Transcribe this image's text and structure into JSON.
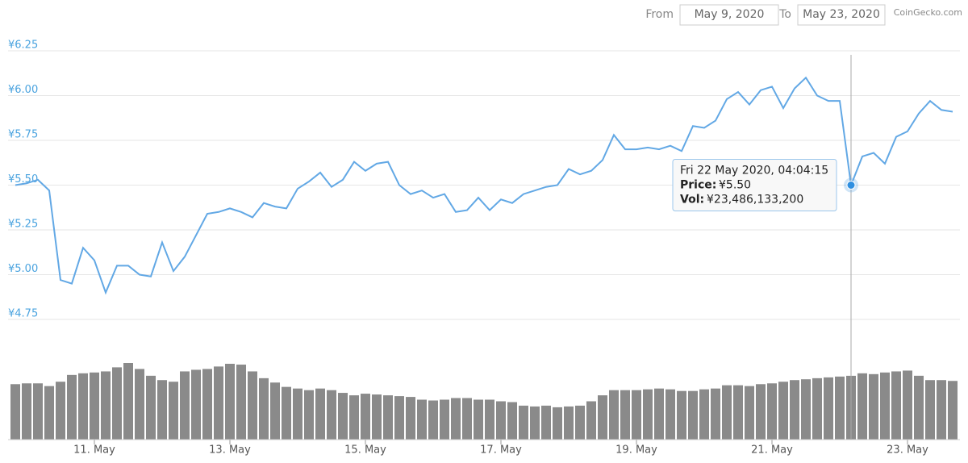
{
  "header": {
    "from_label": "From",
    "from": "May 9, 2020",
    "to_label": "To",
    "to": "May 23, 2020",
    "credit": "CoinGecko.com"
  },
  "chart_data": [
    {
      "type": "line",
      "color": "#62a8e5",
      "grid": true,
      "ylim": [
        4.75,
        6.25
      ],
      "yticks": [
        {
          "value": 4.75,
          "label": "¥4.75"
        },
        {
          "value": 5.0,
          "label": "¥5.00"
        },
        {
          "value": 5.25,
          "label": "¥5.25"
        },
        {
          "value": 5.5,
          "label": "¥5.50"
        },
        {
          "value": 5.75,
          "label": "¥5.75"
        },
        {
          "value": 6.0,
          "label": "¥6.00"
        },
        {
          "value": 6.25,
          "label": "¥6.25"
        }
      ],
      "values": [
        5.5,
        5.51,
        5.53,
        5.47,
        4.97,
        4.95,
        5.15,
        5.08,
        4.9,
        5.05,
        5.05,
        5.0,
        4.99,
        5.18,
        5.02,
        5.1,
        5.22,
        5.34,
        5.35,
        5.37,
        5.35,
        5.32,
        5.4,
        5.38,
        5.37,
        5.48,
        5.52,
        5.57,
        5.49,
        5.53,
        5.63,
        5.58,
        5.62,
        5.63,
        5.5,
        5.45,
        5.47,
        5.43,
        5.45,
        5.35,
        5.36,
        5.43,
        5.36,
        5.42,
        5.4,
        5.45,
        5.47,
        5.49,
        5.5,
        5.59,
        5.56,
        5.58,
        5.64,
        5.78,
        5.7,
        5.7,
        5.71,
        5.7,
        5.72,
        5.69,
        5.83,
        5.82,
        5.86,
        5.98,
        6.02,
        5.95,
        6.03,
        6.05,
        5.93,
        6.04,
        6.1,
        6.0,
        5.97,
        5.97,
        5.5,
        5.66,
        5.68,
        5.62,
        5.77,
        5.8,
        5.9,
        5.97,
        5.92,
        5.91
      ],
      "tooltip": {
        "date": "Fri 22 May 2020, 04:04:15",
        "price_label": "Price:",
        "price": 5.5,
        "price_text": "¥5.50",
        "vol_label": "Vol:",
        "volume": 23486133200,
        "volume_text": "¥23,486,133,200"
      }
    },
    {
      "type": "bar",
      "color": "#8a8a8a",
      "categories": [
        null,
        null,
        null,
        null,
        null,
        null,
        null,
        "11. May",
        null,
        null,
        null,
        null,
        null,
        null,
        null,
        null,
        null,
        null,
        null,
        "13. May",
        null,
        null,
        null,
        null,
        null,
        null,
        null,
        null,
        null,
        null,
        null,
        "15. May",
        null,
        null,
        null,
        null,
        null,
        null,
        null,
        null,
        null,
        null,
        null,
        "17. May",
        null,
        null,
        null,
        null,
        null,
        null,
        null,
        null,
        null,
        null,
        null,
        "19. May",
        null,
        null,
        null,
        null,
        null,
        null,
        null,
        null,
        null,
        null,
        null,
        "21. May",
        null,
        null,
        null,
        null,
        null,
        null,
        null,
        null,
        null,
        null,
        null,
        "23. May",
        null,
        null,
        null,
        null
      ],
      "values": [
        20400000000,
        20700000000,
        20700000000,
        19700000000,
        21300000000,
        23800000000,
        24400000000,
        24700000000,
        25100000000,
        26600000000,
        28200000000,
        26000000000,
        23500000000,
        21900000000,
        21300000000,
        25100000000,
        25700000000,
        26000000000,
        26900000000,
        27900000000,
        27600000000,
        25100000000,
        22600000000,
        21000000000,
        19400000000,
        18800000000,
        18200000000,
        18800000000,
        18200000000,
        17200000000,
        16300000000,
        16900000000,
        16600000000,
        16300000000,
        16000000000,
        15700000000,
        14700000000,
        14400000000,
        14700000000,
        15300000000,
        15300000000,
        14700000000,
        14700000000,
        14100000000,
        13800000000,
        12500000000,
        12200000000,
        12500000000,
        11900000000,
        12200000000,
        12500000000,
        14100000000,
        16300000000,
        18200000000,
        18200000000,
        18200000000,
        18500000000,
        18800000000,
        18500000000,
        17900000000,
        17900000000,
        18500000000,
        18800000000,
        20000000000,
        20000000000,
        19700000000,
        20400000000,
        20700000000,
        21300000000,
        21900000000,
        22200000000,
        22600000000,
        22900000000,
        23200000000,
        23486133200,
        24400000000,
        24100000000,
        24700000000,
        25100000000,
        25400000000,
        23500000000,
        21900000000,
        21900000000,
        21600000000
      ]
    }
  ]
}
